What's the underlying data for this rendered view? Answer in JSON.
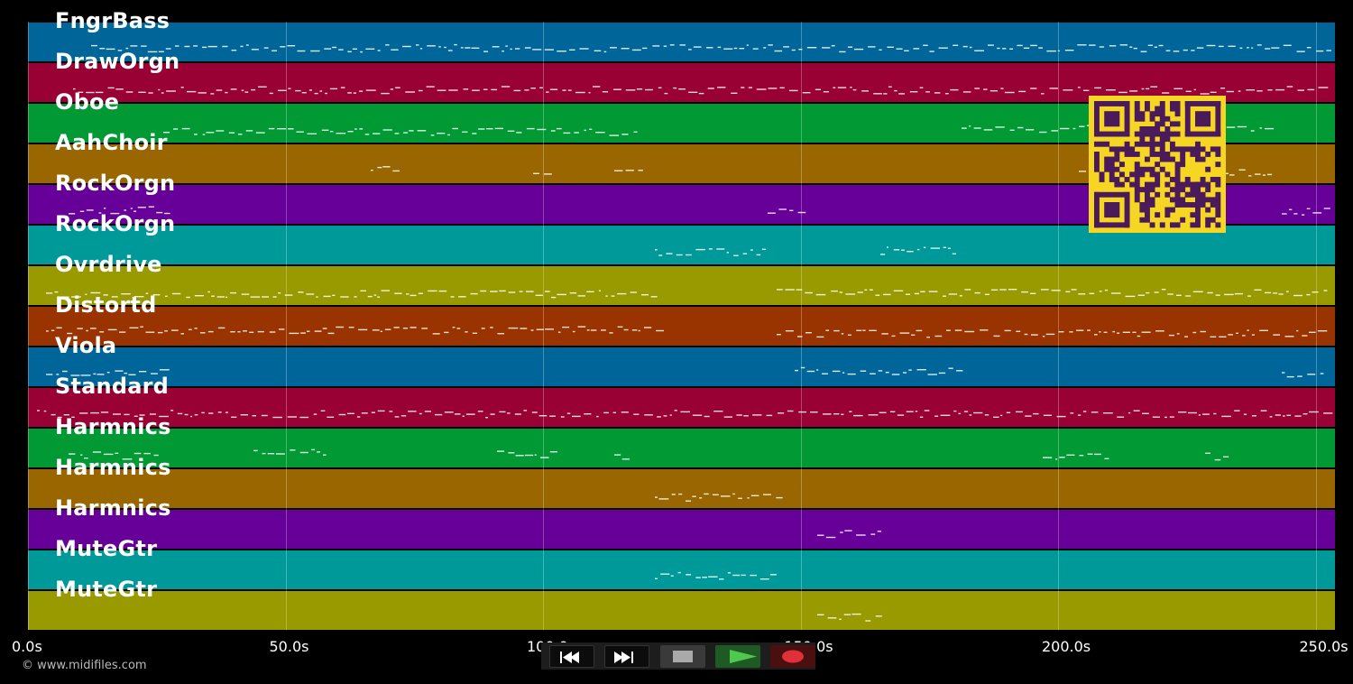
{
  "tracks": [
    {
      "name": "FngrBass",
      "color": "#006699"
    },
    {
      "name": "DrawOrgn",
      "color": "#990033"
    },
    {
      "name": "Oboe",
      "color": "#009933"
    },
    {
      "name": "AahChoir",
      "color": "#996600"
    },
    {
      "name": "RockOrgn",
      "color": "#660099"
    },
    {
      "name": "RockOrgn",
      "color": "#009999"
    },
    {
      "name": "Ovrdrive",
      "color": "#999900"
    },
    {
      "name": "Distortd",
      "color": "#993300"
    },
    {
      "name": "Viola",
      "color": "#006699"
    },
    {
      "name": "Standard",
      "color": "#990033"
    },
    {
      "name": "Harmnics",
      "color": "#009933"
    },
    {
      "name": "Harmnics",
      "color": "#996600"
    },
    {
      "name": "Harmnics",
      "color": "#660099"
    },
    {
      "name": "MuteGtr",
      "color": "#009999"
    },
    {
      "name": "MuteGtr",
      "color": "#999900"
    }
  ],
  "timeline": {
    "ticks": [
      "0.0s",
      "50.0s",
      "100.0s",
      "150.0s",
      "200.0s",
      "250.0s"
    ]
  },
  "copyright": "© www.midifiles.com",
  "transport": {
    "buttons": [
      {
        "name": "rewind-button",
        "icon": "rewind-icon"
      },
      {
        "name": "fast-forward-button",
        "icon": "fast-forward-icon"
      },
      {
        "name": "stop-button",
        "icon": "stop-icon"
      },
      {
        "name": "play-button",
        "icon": "play-icon"
      },
      {
        "name": "record-button",
        "icon": "record-icon"
      }
    ]
  },
  "qr_code": {
    "icon": "qr-code-icon",
    "color": "#f5d622",
    "dark": "#4a1a5a"
  }
}
